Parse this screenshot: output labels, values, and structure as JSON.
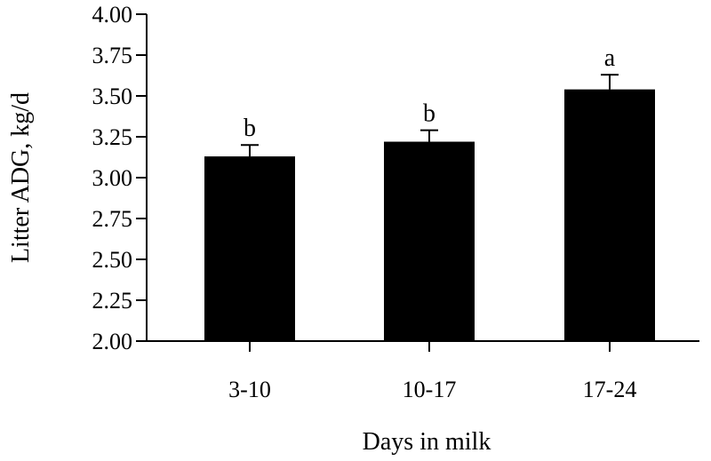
{
  "chart_data": {
    "type": "bar",
    "title": "",
    "xlabel": "Days in milk",
    "ylabel": "Litter ADG, kg/d",
    "categories": [
      "3-10",
      "10-17",
      "17-24"
    ],
    "values": [
      3.13,
      3.22,
      3.54
    ],
    "errors": [
      0.07,
      0.07,
      0.09
    ],
    "significance": [
      "b",
      "b",
      "a"
    ],
    "ylim": [
      2.0,
      4.0
    ],
    "yticks": [
      "2.00",
      "2.25",
      "2.50",
      "2.75",
      "3.00",
      "3.25",
      "3.50",
      "3.75",
      "4.00"
    ],
    "grid": false,
    "legend": "none",
    "bar_color": "#000000"
  }
}
